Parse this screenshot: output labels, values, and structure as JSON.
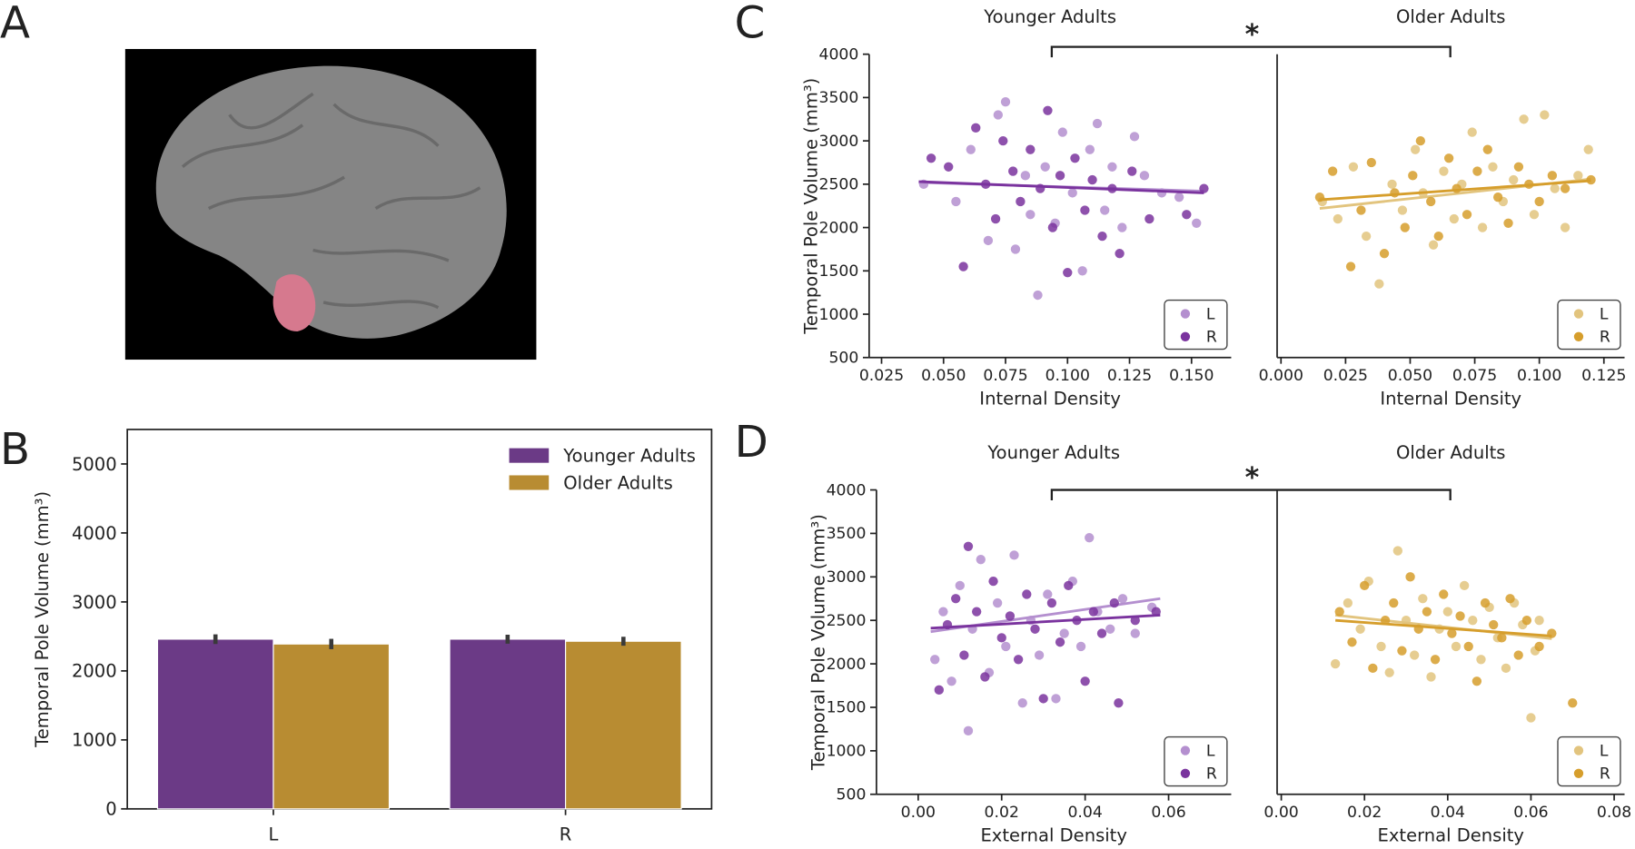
{
  "panel_labels": [
    "A",
    "B",
    "C",
    "D"
  ],
  "chart_data": [
    {
      "type": "bar",
      "categories": [
        "L",
        "R"
      ],
      "ylabel": "Temporal Pole Volume (mm³)",
      "ylim": [
        0,
        5500
      ],
      "yticks": [
        0,
        1000,
        2000,
        3000,
        4000,
        5000
      ],
      "legend": "upper right",
      "series": [
        {
          "name": "Younger Adults",
          "color": "#6b3a86",
          "values": [
            2460,
            2460
          ],
          "errors": [
            70,
            65
          ]
        },
        {
          "name": "Older Adults",
          "color": "#b88c32",
          "values": [
            2390,
            2430
          ],
          "errors": [
            75,
            65
          ]
        }
      ]
    },
    {
      "type": "scatter",
      "title": "Younger Adults",
      "xlabel": "Internal Density",
      "ylabel": "Temporal Pole Volume (mm³)",
      "annotation": "*",
      "legend": "lower right",
      "xlim": [
        0.02,
        0.166
      ],
      "ylim": [
        500,
        4000
      ],
      "xticks": [
        {
          "value": 0.025,
          "label": "0.025"
        },
        {
          "value": 0.05,
          "label": "0.050"
        },
        {
          "value": 0.075,
          "label": "0.075"
        },
        {
          "value": 0.1,
          "label": "0.100"
        },
        {
          "value": 0.125,
          "label": "0.125"
        },
        {
          "value": 0.15,
          "label": "0.150"
        }
      ],
      "yticks": [
        500,
        1000,
        1500,
        2000,
        2500,
        3000,
        3500,
        4000
      ],
      "series": [
        {
          "name": "L",
          "color": "#b48fcf",
          "x": [
            0.042,
            0.055,
            0.061,
            0.068,
            0.072,
            0.075,
            0.079,
            0.083,
            0.088,
            0.091,
            0.095,
            0.098,
            0.102,
            0.106,
            0.109,
            0.112,
            0.115,
            0.118,
            0.122,
            0.127,
            0.131,
            0.138,
            0.145,
            0.152,
            0.085
          ],
          "values": [
            2500,
            2300,
            2900,
            1850,
            3300,
            3450,
            1750,
            2600,
            1220,
            2700,
            2050,
            3100,
            2400,
            1500,
            2900,
            3200,
            2200,
            2700,
            2000,
            3050,
            2600,
            2400,
            2350,
            2050,
            2150
          ],
          "fit": {
            "x": [
              0.04,
              0.155
            ],
            "y": [
              2520,
              2420
            ]
          }
        },
        {
          "name": "R",
          "color": "#7a339e",
          "x": [
            0.045,
            0.052,
            0.058,
            0.063,
            0.067,
            0.071,
            0.074,
            0.078,
            0.081,
            0.085,
            0.089,
            0.092,
            0.094,
            0.097,
            0.1,
            0.103,
            0.107,
            0.11,
            0.114,
            0.118,
            0.121,
            0.126,
            0.133,
            0.148,
            0.155
          ],
          "values": [
            2800,
            2700,
            1550,
            3150,
            2500,
            2100,
            3000,
            2650,
            2300,
            2900,
            2450,
            3350,
            2000,
            2600,
            1480,
            2800,
            2200,
            2550,
            1900,
            2450,
            1700,
            2650,
            2100,
            2150,
            2450
          ],
          "fit": {
            "x": [
              0.04,
              0.155
            ],
            "y": [
              2530,
              2400
            ]
          }
        }
      ]
    },
    {
      "type": "scatter",
      "title": "Older Adults",
      "xlabel": "Internal Density",
      "legend": "lower right",
      "xlim": [
        -0.0015,
        0.133
      ],
      "ylim": [
        500,
        4000
      ],
      "xticks": [
        {
          "value": 0,
          "label": "0.000"
        },
        {
          "value": 0.025,
          "label": "0.025"
        },
        {
          "value": 0.05,
          "label": "0.050"
        },
        {
          "value": 0.075,
          "label": "0.075"
        },
        {
          "value": 0.1,
          "label": "0.100"
        },
        {
          "value": 0.125,
          "label": "0.125"
        }
      ],
      "series": [
        {
          "name": "L",
          "color": "#e2c47e",
          "x": [
            0.016,
            0.022,
            0.028,
            0.033,
            0.038,
            0.043,
            0.047,
            0.052,
            0.055,
            0.059,
            0.063,
            0.067,
            0.07,
            0.074,
            0.078,
            0.082,
            0.086,
            0.09,
            0.094,
            0.098,
            0.102,
            0.106,
            0.11,
            0.115,
            0.119
          ],
          "values": [
            2300,
            2100,
            2700,
            1900,
            1350,
            2500,
            2200,
            2900,
            2400,
            1800,
            2650,
            2100,
            2500,
            3100,
            2000,
            2700,
            2300,
            2550,
            3250,
            2150,
            3300,
            2450,
            2000,
            2600,
            2900
          ],
          "fit": {
            "x": [
              0.015,
              0.12
            ],
            "y": [
              2220,
              2560
            ]
          }
        },
        {
          "name": "R",
          "color": "#d69e2c",
          "x": [
            0.015,
            0.02,
            0.027,
            0.031,
            0.035,
            0.04,
            0.044,
            0.048,
            0.051,
            0.054,
            0.058,
            0.061,
            0.065,
            0.068,
            0.072,
            0.076,
            0.08,
            0.084,
            0.088,
            0.092,
            0.096,
            0.1,
            0.105,
            0.11,
            0.12
          ],
          "values": [
            2350,
            2650,
            1550,
            2200,
            2750,
            1700,
            2400,
            2000,
            2600,
            3000,
            2300,
            1900,
            2800,
            2450,
            2150,
            2650,
            2900,
            2350,
            2050,
            2700,
            2500,
            2300,
            2600,
            2450,
            2550
          ],
          "fit": {
            "x": [
              0.015,
              0.12
            ],
            "y": [
              2320,
              2540
            ]
          }
        }
      ]
    },
    {
      "type": "scatter",
      "title": "Younger Adults",
      "xlabel": "External Density",
      "ylabel": "Temporal Pole Volume (mm³)",
      "annotation": "*",
      "legend": "lower right",
      "xlim": [
        -0.01,
        0.075
      ],
      "ylim": [
        500,
        4000
      ],
      "xticks": [
        {
          "value": 0,
          "label": "0.00"
        },
        {
          "value": 0.02,
          "label": "0.02"
        },
        {
          "value": 0.04,
          "label": "0.04"
        },
        {
          "value": 0.06,
          "label": "0.06"
        }
      ],
      "yticks": [
        500,
        1000,
        1500,
        2000,
        2500,
        3000,
        3500,
        4000
      ],
      "series": [
        {
          "name": "L",
          "color": "#b48fcf",
          "x": [
            0.004,
            0.006,
            0.008,
            0.01,
            0.012,
            0.013,
            0.015,
            0.017,
            0.019,
            0.021,
            0.023,
            0.025,
            0.027,
            0.029,
            0.031,
            0.033,
            0.035,
            0.037,
            0.039,
            0.041,
            0.043,
            0.046,
            0.049,
            0.052,
            0.056
          ],
          "values": [
            2050,
            2600,
            1800,
            2900,
            1230,
            2400,
            3200,
            1900,
            2700,
            2200,
            3250,
            1550,
            2500,
            2100,
            2800,
            1600,
            2350,
            2950,
            2200,
            3450,
            2600,
            2400,
            2750,
            2350,
            2650
          ],
          "fit": {
            "x": [
              0.003,
              0.058
            ],
            "y": [
              2370,
              2750
            ]
          }
        },
        {
          "name": "R",
          "color": "#7a339e",
          "x": [
            0.005,
            0.007,
            0.009,
            0.011,
            0.012,
            0.014,
            0.016,
            0.018,
            0.02,
            0.022,
            0.024,
            0.026,
            0.028,
            0.03,
            0.032,
            0.034,
            0.036,
            0.038,
            0.04,
            0.042,
            0.044,
            0.047,
            0.048,
            0.052,
            0.057
          ],
          "values": [
            1700,
            2450,
            2750,
            2100,
            3350,
            2600,
            1850,
            2950,
            2300,
            2550,
            2050,
            2800,
            2400,
            1600,
            2700,
            2250,
            2900,
            2500,
            1800,
            2600,
            2350,
            2700,
            1550,
            2500,
            2600
          ],
          "fit": {
            "x": [
              0.003,
              0.058
            ],
            "y": [
              2410,
              2560
            ]
          }
        }
      ]
    },
    {
      "type": "scatter",
      "title": "Older Adults",
      "xlabel": "External Density",
      "legend": "lower right",
      "xlim": [
        -0.001,
        0.0825
      ],
      "ylim": [
        500,
        4000
      ],
      "xticks": [
        {
          "value": 0,
          "label": "0.00"
        },
        {
          "value": 0.02,
          "label": "0.02"
        },
        {
          "value": 0.04,
          "label": "0.04"
        },
        {
          "value": 0.06,
          "label": "0.06"
        },
        {
          "value": 0.08,
          "label": "0.08"
        }
      ],
      "series": [
        {
          "name": "L",
          "color": "#e2c47e",
          "x": [
            0.013,
            0.016,
            0.019,
            0.021,
            0.024,
            0.026,
            0.028,
            0.03,
            0.032,
            0.034,
            0.036,
            0.038,
            0.04,
            0.042,
            0.044,
            0.046,
            0.048,
            0.05,
            0.052,
            0.054,
            0.056,
            0.058,
            0.06,
            0.061,
            0.062
          ],
          "values": [
            2000,
            2700,
            2400,
            2950,
            2200,
            1900,
            3300,
            2500,
            2100,
            2750,
            1850,
            2400,
            2600,
            2200,
            2900,
            2500,
            2050,
            2650,
            2300,
            1950,
            2700,
            2450,
            1380,
            2150,
            2500
          ],
          "fit": {
            "x": [
              0.013,
              0.065
            ],
            "y": [
              2560,
              2290
            ]
          }
        },
        {
          "name": "R",
          "color": "#d69e2c",
          "x": [
            0.014,
            0.017,
            0.02,
            0.022,
            0.025,
            0.027,
            0.029,
            0.031,
            0.033,
            0.035,
            0.037,
            0.039,
            0.041,
            0.043,
            0.045,
            0.047,
            0.049,
            0.051,
            0.053,
            0.055,
            0.057,
            0.059,
            0.062,
            0.065,
            0.07
          ],
          "values": [
            2600,
            2250,
            2900,
            1950,
            2500,
            2700,
            2150,
            3000,
            2400,
            2600,
            2050,
            2800,
            2350,
            2550,
            2200,
            1800,
            2700,
            2450,
            2300,
            2750,
            2100,
            2500,
            2200,
            2350,
            1550
          ],
          "fit": {
            "x": [
              0.013,
              0.065
            ],
            "y": [
              2500,
              2320
            ]
          }
        }
      ]
    }
  ]
}
